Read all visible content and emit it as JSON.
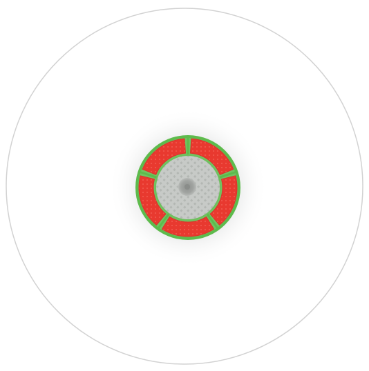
{
  "colors": {
    "background": "#ffffff",
    "arena_outline": "#cfcfcf",
    "glow": "#9aa0a0",
    "ring": "#58b947",
    "segment": "#e8392f",
    "segment_highlight": "#ff5a4f",
    "floor": "#c6c9c6",
    "floor_pattern": "#b2b6b2",
    "core": "#9a9d9a"
  },
  "arena": {
    "shape": "circle"
  },
  "target": {
    "segment_count": 5,
    "divider_count": 5,
    "center_icon": "core-dot-icon"
  }
}
